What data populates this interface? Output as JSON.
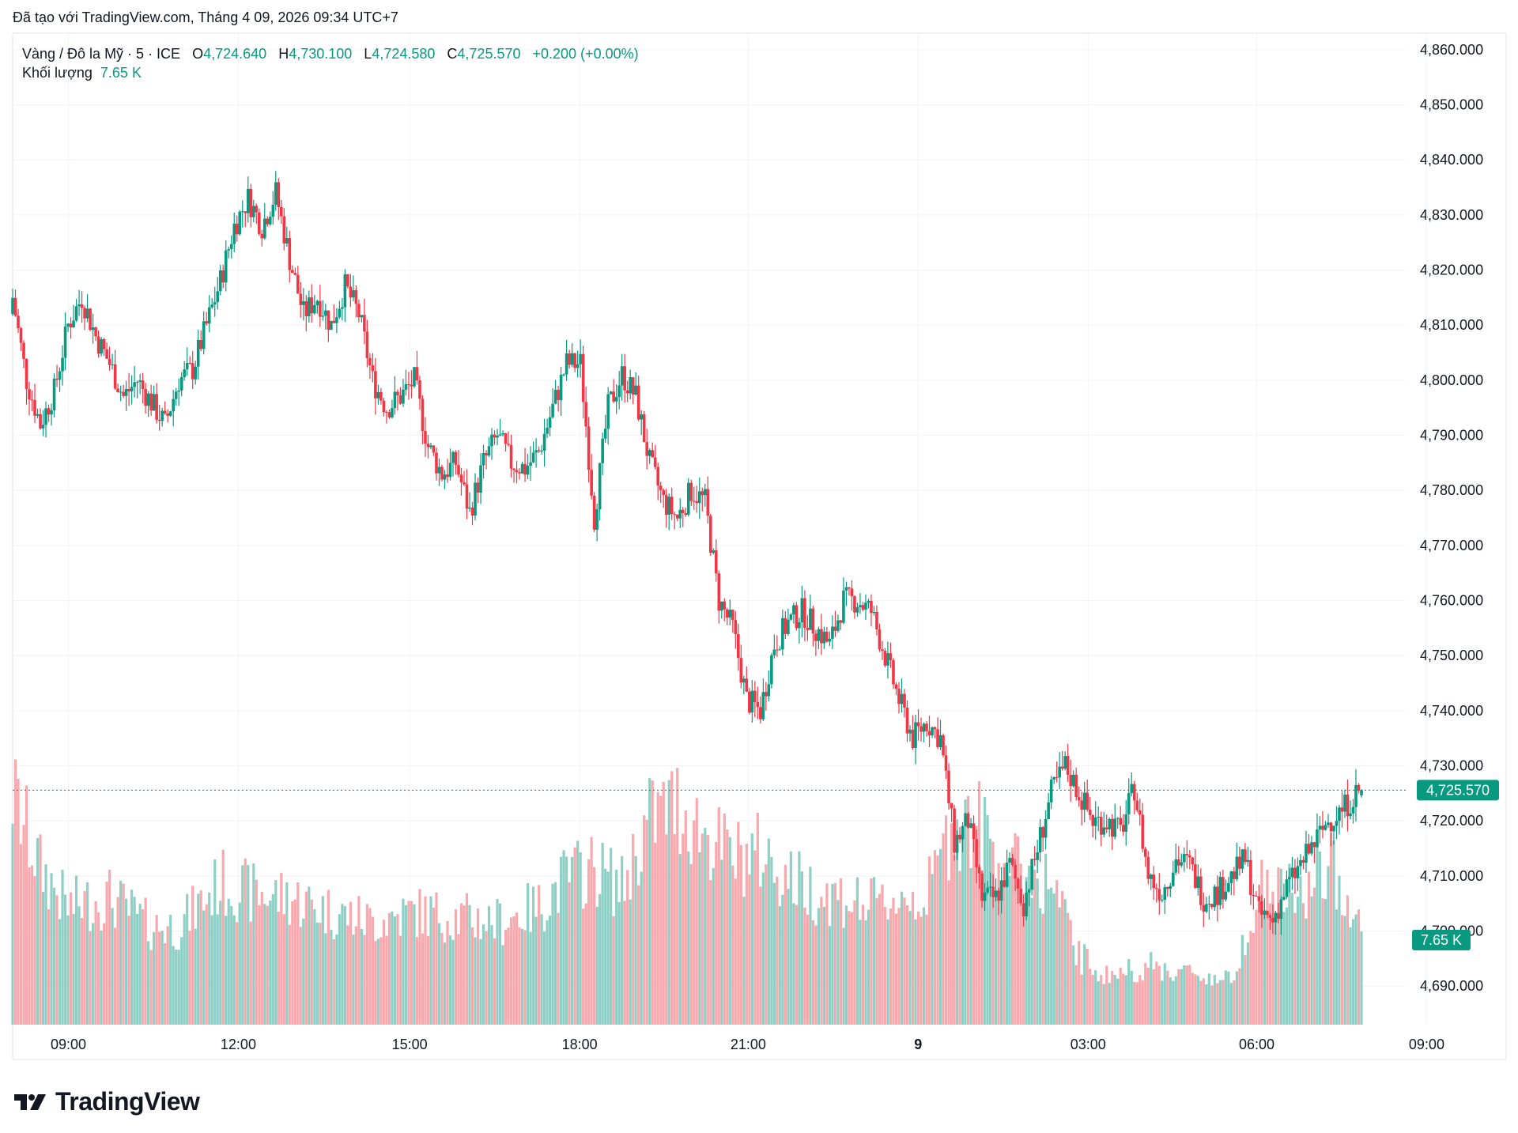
{
  "header": {
    "caption": "Đã tạo với TradingView.com, Tháng 4 09, 2026 09:34 UTC+7"
  },
  "legend": {
    "symbol": "Vàng / Đô la Mỹ · 5 · ICE",
    "open_label": "O",
    "open": "4,724.640",
    "high_label": "H",
    "high": "4,730.100",
    "low_label": "L",
    "low": "4,724.580",
    "close_label": "C",
    "close": "4,725.570",
    "change": "+0.200 (+0.00%)",
    "volume_label": "Khối lượng",
    "volume": "7.65 K"
  },
  "logo": {
    "text": "TradingView"
  },
  "colors": {
    "up": "#089981",
    "down": "#f23645",
    "up_vol": "#8fd0c6",
    "down_vol": "#f7a9ae",
    "grid": "#f0f3fa",
    "text": "#131722"
  },
  "chart_data": {
    "type": "candlestick",
    "title": "Vàng / Đô la Mỹ · 5 · ICE",
    "y_axis": {
      "range": [
        4683,
        4863
      ],
      "ticks": [
        "4,860.000",
        "4,850.000",
        "4,840.000",
        "4,830.000",
        "4,820.000",
        "4,810.000",
        "4,800.000",
        "4,790.000",
        "4,780.000",
        "4,770.000",
        "4,760.000",
        "4,750.000",
        "4,740.000",
        "4,730.000",
        "4,720.000",
        "4,710.000",
        "4,700.000",
        "4,690.000"
      ]
    },
    "x_axis": {
      "ticks": [
        {
          "label": "09:00",
          "at": 0.04
        },
        {
          "label": "12:00",
          "at": 0.162
        },
        {
          "label": "15:00",
          "at": 0.285
        },
        {
          "label": "18:00",
          "at": 0.407
        },
        {
          "label": "21:00",
          "at": 0.528
        },
        {
          "label": "9",
          "at": 0.65,
          "bold": true
        },
        {
          "label": "03:00",
          "at": 0.772
        },
        {
          "label": "06:00",
          "at": 0.893
        },
        {
          "label": "09:00",
          "at": 1.015
        }
      ]
    },
    "last_price": "4,725.570",
    "last_volume": "7.65 K",
    "anchors": [
      [
        0,
        4815
      ],
      [
        5,
        4800
      ],
      [
        10,
        4792
      ],
      [
        15,
        4798
      ],
      [
        20,
        4810
      ],
      [
        25,
        4815
      ],
      [
        30,
        4808
      ],
      [
        35,
        4803
      ],
      [
        40,
        4797
      ],
      [
        45,
        4800
      ],
      [
        50,
        4796
      ],
      [
        55,
        4792
      ],
      [
        60,
        4800
      ],
      [
        65,
        4802
      ],
      [
        70,
        4810
      ],
      [
        75,
        4818
      ],
      [
        80,
        4828
      ],
      [
        85,
        4833
      ],
      [
        90,
        4828
      ],
      [
        95,
        4834
      ],
      [
        100,
        4822
      ],
      [
        105,
        4812
      ],
      [
        110,
        4815
      ],
      [
        115,
        4810
      ],
      [
        120,
        4817
      ],
      [
        125,
        4812
      ],
      [
        130,
        4800
      ],
      [
        135,
        4795
      ],
      [
        140,
        4797
      ],
      [
        145,
        4800
      ],
      [
        150,
        4788
      ],
      [
        155,
        4783
      ],
      [
        160,
        4785
      ],
      [
        165,
        4776
      ],
      [
        170,
        4785
      ],
      [
        175,
        4790
      ],
      [
        180,
        4785
      ],
      [
        185,
        4784
      ],
      [
        190,
        4787
      ],
      [
        195,
        4795
      ],
      [
        200,
        4803
      ],
      [
        205,
        4803
      ],
      [
        210,
        4775
      ],
      [
        215,
        4795
      ],
      [
        220,
        4801
      ],
      [
        225,
        4797
      ],
      [
        230,
        4785
      ],
      [
        235,
        4778
      ],
      [
        240,
        4775
      ],
      [
        245,
        4780
      ],
      [
        250,
        4778
      ],
      [
        255,
        4760
      ],
      [
        260,
        4755
      ],
      [
        265,
        4742
      ],
      [
        270,
        4740
      ],
      [
        275,
        4752
      ],
      [
        280,
        4756
      ],
      [
        285,
        4758
      ],
      [
        290,
        4755
      ],
      [
        295,
        4752
      ],
      [
        300,
        4760
      ],
      [
        305,
        4760
      ],
      [
        310,
        4758
      ],
      [
        315,
        4750
      ],
      [
        320,
        4742
      ],
      [
        325,
        4735
      ],
      [
        330,
        4738
      ],
      [
        335,
        4735
      ],
      [
        340,
        4716
      ],
      [
        345,
        4720
      ],
      [
        350,
        4706
      ],
      [
        355,
        4706
      ],
      [
        360,
        4712
      ],
      [
        365,
        4705
      ],
      [
        370,
        4715
      ],
      [
        375,
        4725
      ],
      [
        380,
        4730
      ],
      [
        385,
        4725
      ],
      [
        390,
        4720
      ],
      [
        395,
        4720
      ],
      [
        400,
        4718
      ],
      [
        405,
        4726
      ],
      [
        410,
        4710
      ],
      [
        415,
        4707
      ],
      [
        420,
        4713
      ],
      [
        425,
        4712
      ],
      [
        430,
        4706
      ],
      [
        435,
        4707
      ],
      [
        440,
        4710
      ],
      [
        445,
        4713
      ],
      [
        450,
        4703
      ],
      [
        455,
        4702
      ],
      [
        460,
        4708
      ],
      [
        465,
        4712
      ],
      [
        470,
        4716
      ],
      [
        475,
        4720
      ],
      [
        480,
        4722
      ],
      [
        485,
        4725
      ],
      [
        487,
        4725.5
      ]
    ],
    "volume_anchors": [
      [
        0,
        4.7
      ],
      [
        10,
        3.2
      ],
      [
        20,
        2.4
      ],
      [
        35,
        2.6
      ],
      [
        50,
        2.0
      ],
      [
        60,
        2.0
      ],
      [
        75,
        2.9
      ],
      [
        85,
        2.7
      ],
      [
        100,
        2.6
      ],
      [
        115,
        2.3
      ],
      [
        130,
        2.1
      ],
      [
        145,
        2.3
      ],
      [
        160,
        2.2
      ],
      [
        175,
        2.1
      ],
      [
        190,
        2.4
      ],
      [
        200,
        3.0
      ],
      [
        210,
        3.2
      ],
      [
        220,
        2.8
      ],
      [
        230,
        4.2
      ],
      [
        240,
        4.5
      ],
      [
        250,
        3.9
      ],
      [
        260,
        3.4
      ],
      [
        270,
        3.5
      ],
      [
        280,
        3.0
      ],
      [
        290,
        2.7
      ],
      [
        300,
        2.6
      ],
      [
        310,
        2.4
      ],
      [
        320,
        2.6
      ],
      [
        330,
        2.6
      ],
      [
        340,
        4.2
      ],
      [
        350,
        4.0
      ],
      [
        360,
        3.2
      ],
      [
        375,
        2.9
      ],
      [
        385,
        1.4
      ],
      [
        395,
        1.0
      ],
      [
        410,
        1.2
      ],
      [
        420,
        1.1
      ],
      [
        440,
        0.9
      ],
      [
        450,
        2.8
      ],
      [
        465,
        2.6
      ],
      [
        475,
        3.2
      ],
      [
        480,
        2.9
      ],
      [
        487,
        1.9
      ]
    ]
  }
}
